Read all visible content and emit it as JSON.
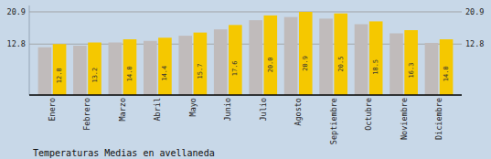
{
  "chart_data": {
    "type": "bar",
    "title": "Temperaturas Medias en avellaneda",
    "categories": [
      "Enero",
      "Febrero",
      "Marzo",
      "Abril",
      "Mayo",
      "Junio",
      "Julio",
      "Agosto",
      "Septiembre",
      "Octubre",
      "Noviembre",
      "Diciembre"
    ],
    "series": [
      {
        "color": "#C0BBBB",
        "values": [
          12.0,
          12.4,
          13.2,
          13.6,
          14.9,
          16.5,
          18.8,
          19.6,
          19.2,
          17.8,
          15.5,
          13.1
        ]
      },
      {
        "color": "#F5C800",
        "values": [
          12.8,
          13.2,
          14.0,
          14.4,
          15.7,
          17.6,
          20.0,
          20.9,
          20.5,
          18.5,
          16.3,
          14.0
        ],
        "data_labels": true,
        "value_labels": [
          "12.8",
          "13.2",
          "14.0",
          "14.4",
          "15.7",
          "17.6",
          "20.0",
          "20.9",
          "20.5",
          "18.5",
          "16.3",
          "14.0"
        ]
      }
    ],
    "ylim": [
      0,
      22.5
    ],
    "yticks": [
      12.8,
      20.9
    ],
    "y2lim": [
      0,
      22.5
    ],
    "y2ticks": [
      12.8,
      20.9
    ],
    "grid": true
  }
}
